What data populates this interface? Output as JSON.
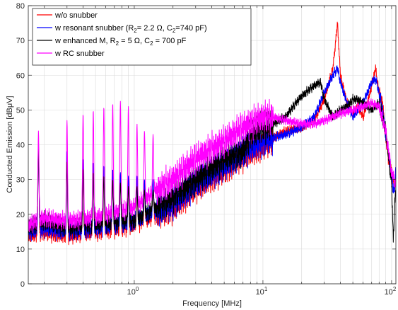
{
  "chart_data": {
    "type": "line",
    "xlabel": "Frequency [MHz]",
    "ylabel": "Conducted Emission [dBμV]",
    "xscale": "log",
    "xlim": [
      0.15,
      108
    ],
    "ylim": [
      0,
      80
    ],
    "grid": true,
    "legend_position": "top-left",
    "x_tick_labels": [
      {
        "base": "10",
        "exp": "0",
        "value": 1
      },
      {
        "base": "10",
        "exp": "1",
        "value": 10
      },
      {
        "base": "10",
        "exp": "2",
        "value": 100
      }
    ],
    "y_ticks": [
      0,
      10,
      20,
      30,
      40,
      50,
      60,
      70,
      80
    ],
    "legend": [
      {
        "key": "wo",
        "color": "#ff0000",
        "parts": [
          {
            "t": "w/o snubber"
          }
        ]
      },
      {
        "key": "res",
        "color": "#0000ff",
        "parts": [
          {
            "t": "w resonant snubber (R"
          },
          {
            "t": "2",
            "sub": true
          },
          {
            "t": "= 2.2 Ω, C"
          },
          {
            "t": "2",
            "sub": true
          },
          {
            "t": "=740 pF)"
          }
        ]
      },
      {
        "key": "enh",
        "color": "#000000",
        "parts": [
          {
            "t": "w enhanced M, R"
          },
          {
            "t": "2",
            "sub": true
          },
          {
            "t": " = 5 Ω, C"
          },
          {
            "t": "2",
            "sub": true
          },
          {
            "t": " = 700 pF"
          }
        ]
      },
      {
        "key": "rc",
        "color": "#ff00ff",
        "parts": [
          {
            "t": "w RC snubber"
          }
        ]
      }
    ],
    "series": [
      {
        "key": "wo",
        "color": "#ff0000",
        "peak_freqs": [
          0.18,
          0.3,
          0.4,
          0.48,
          0.58,
          0.68,
          0.78,
          0.9,
          1.05,
          1.2,
          1.4
        ],
        "peak_vals": [
          40,
          37,
          35,
          34,
          33,
          32,
          31,
          30,
          30,
          29,
          29
        ],
        "envelope_x": [
          0.15,
          0.2,
          0.3,
          0.5,
          0.8,
          1.0,
          1.5,
          2,
          3,
          5,
          7,
          10,
          12,
          15,
          20,
          25,
          30,
          35,
          38,
          40,
          45,
          50,
          55,
          60,
          65,
          70,
          75,
          80,
          85,
          90,
          95,
          100,
          105,
          108
        ],
        "envelope_y": [
          14,
          15,
          14,
          15,
          16,
          17,
          20,
          22,
          28,
          33,
          37,
          40,
          42,
          44,
          45,
          47,
          53,
          62,
          75,
          60,
          52,
          49,
          51,
          48,
          52,
          57,
          62,
          55,
          52,
          42,
          36,
          32,
          28,
          30
        ]
      },
      {
        "key": "res",
        "color": "#0000ff",
        "peak_freqs": [
          0.18,
          0.3,
          0.4,
          0.48,
          0.58,
          0.68,
          0.78,
          0.9,
          1.05,
          1.2,
          1.4
        ],
        "peak_vals": [
          41,
          38,
          36,
          35,
          34,
          33,
          32,
          31,
          31,
          30,
          30
        ],
        "envelope_x": [
          0.15,
          0.2,
          0.3,
          0.5,
          0.8,
          1.0,
          1.5,
          2,
          3,
          5,
          7,
          10,
          12,
          15,
          20,
          25,
          30,
          35,
          38,
          40,
          45,
          50,
          55,
          60,
          65,
          70,
          75,
          80,
          85,
          90,
          95,
          100,
          105,
          108
        ],
        "envelope_y": [
          15,
          16,
          15,
          16,
          17,
          18,
          21,
          23,
          29,
          34,
          38,
          41,
          42,
          43,
          45,
          48,
          55,
          60,
          62,
          58,
          52,
          48,
          50,
          52,
          55,
          58,
          59,
          55,
          50,
          43,
          37,
          31,
          26,
          34
        ]
      },
      {
        "key": "enh",
        "color": "#000000",
        "peak_freqs": [
          0.18,
          0.3,
          0.4,
          0.48,
          0.58,
          0.68,
          0.78,
          0.9,
          1.05,
          1.2,
          1.4
        ],
        "peak_vals": [
          40,
          35,
          33,
          32,
          31,
          30,
          29,
          28,
          28,
          27,
          27
        ],
        "envelope_x": [
          0.15,
          0.2,
          0.3,
          0.5,
          0.8,
          1.0,
          1.5,
          2,
          3,
          5,
          7,
          8,
          10,
          12,
          15,
          18,
          20,
          25,
          28,
          30,
          35,
          40,
          45,
          50,
          55,
          60,
          70,
          80,
          90,
          95,
          100,
          103,
          105,
          108
        ],
        "envelope_y": [
          16,
          18,
          16,
          17,
          18,
          18,
          22,
          25,
          30,
          36,
          38,
          43,
          45,
          46,
          48,
          52,
          54,
          57,
          58,
          53,
          48,
          50,
          51,
          53,
          53,
          52,
          50,
          52,
          44,
          36,
          29,
          13,
          20,
          28
        ]
      },
      {
        "key": "rc",
        "color": "#ff00ff",
        "peak_freqs": [
          0.18,
          0.3,
          0.4,
          0.48,
          0.58,
          0.68,
          0.78,
          0.9,
          1.05,
          1.2,
          1.4
        ],
        "peak_vals": [
          44,
          47,
          49,
          50,
          51,
          52,
          52.5,
          51,
          46,
          44,
          43
        ],
        "envelope_x": [
          0.15,
          0.2,
          0.3,
          0.5,
          0.8,
          1.0,
          1.5,
          2,
          3,
          5,
          7,
          10,
          12,
          15,
          20,
          25,
          30,
          40,
          50,
          60,
          70,
          80,
          90,
          95,
          100,
          105,
          108
        ],
        "envelope_y": [
          17,
          19,
          18,
          19,
          21,
          22,
          27,
          30,
          36,
          41,
          45,
          48,
          48,
          47,
          46,
          46,
          47,
          49,
          50,
          51,
          52,
          51,
          44,
          38,
          32,
          30,
          28
        ]
      }
    ]
  }
}
